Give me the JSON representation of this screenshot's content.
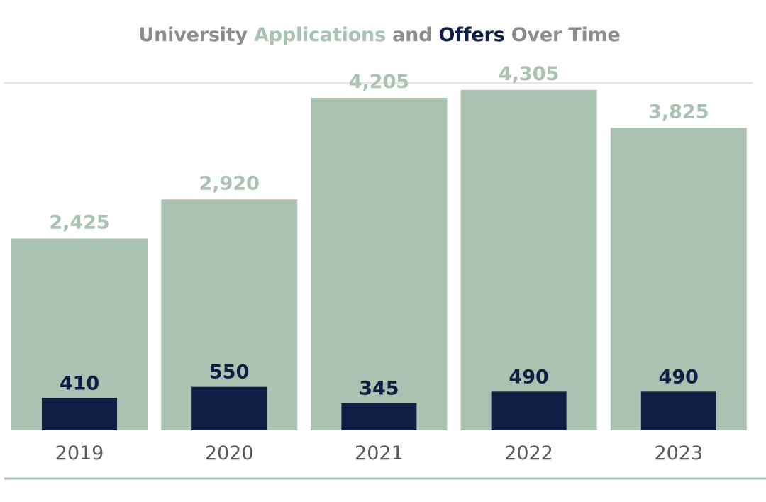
{
  "chart_data": {
    "type": "bar",
    "title_parts": [
      {
        "text": "University ",
        "role": "plain"
      },
      {
        "text": "Applications",
        "role": "applications"
      },
      {
        "text": " and ",
        "role": "plain"
      },
      {
        "text": "Offers",
        "role": "offers"
      },
      {
        "text": " Over Time",
        "role": "plain"
      }
    ],
    "categories": [
      "2019",
      "2020",
      "2021",
      "2022",
      "2023"
    ],
    "series": [
      {
        "name": "Applications",
        "values": [
          2425,
          2920,
          4205,
          4305,
          3825
        ],
        "labels": [
          "2,425",
          "2,920",
          "4,205",
          "4,305",
          "3,825"
        ]
      },
      {
        "name": "Offers",
        "values": [
          410,
          550,
          345,
          490,
          490
        ],
        "labels": [
          "410",
          "550",
          "345",
          "490",
          "490"
        ]
      }
    ],
    "ylim": [
      0,
      5200
    ],
    "xlabel": "",
    "ylabel": "",
    "grid": false
  },
  "colors": {
    "applications": "#a9c2b1",
    "offers": "#0f1f43",
    "title_plain": "#888e8b",
    "top_rule": "#e6e6e6",
    "bottom_rule": "#a9c2b1"
  }
}
